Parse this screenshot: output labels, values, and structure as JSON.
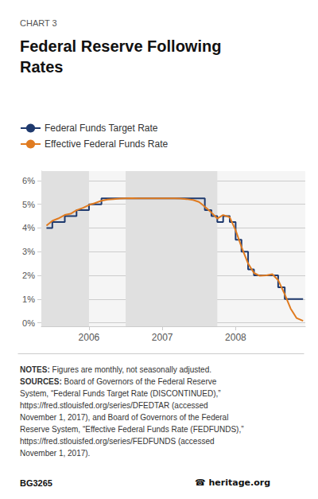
{
  "chart_data": {
    "type": "line",
    "title_label": "CHART 3",
    "title": "Federal Reserve Following\nRates",
    "x": [
      2005.42,
      2005.5,
      2005.58,
      2005.67,
      2005.75,
      2005.83,
      2005.92,
      2006.0,
      2006.08,
      2006.17,
      2006.25,
      2006.33,
      2006.42,
      2006.5,
      2006.58,
      2006.67,
      2006.75,
      2006.83,
      2006.92,
      2007.0,
      2007.08,
      2007.17,
      2007.25,
      2007.33,
      2007.42,
      2007.5,
      2007.58,
      2007.67,
      2007.75,
      2007.83,
      2007.92,
      2008.0,
      2008.08,
      2008.17,
      2008.25,
      2008.33,
      2008.42,
      2008.5,
      2008.58,
      2008.67,
      2008.75,
      2008.83,
      2008.92
    ],
    "series": [
      {
        "name": "Federal Funds Target Rate",
        "color": "#1f3a6e",
        "type": "step",
        "values": [
          4.0,
          4.25,
          4.25,
          4.5,
          4.5,
          4.75,
          4.75,
          5.0,
          5.0,
          5.25,
          5.25,
          5.25,
          5.25,
          5.25,
          5.25,
          5.25,
          5.25,
          5.25,
          5.25,
          5.25,
          5.25,
          5.25,
          5.25,
          5.25,
          5.25,
          5.25,
          4.75,
          4.5,
          4.25,
          4.5,
          4.25,
          3.5,
          3.0,
          2.25,
          2.0,
          2.0,
          2.0,
          2.0,
          1.5,
          1.0,
          1.0,
          1.0,
          1.0
        ]
      },
      {
        "name": "Effective Federal Funds Rate",
        "color": "#e07b20",
        "type": "line",
        "values": [
          4.1,
          4.3,
          4.4,
          4.55,
          4.6,
          4.75,
          4.85,
          4.97,
          5.05,
          5.15,
          5.2,
          5.22,
          5.24,
          5.25,
          5.26,
          5.25,
          5.25,
          5.25,
          5.25,
          5.25,
          5.25,
          5.25,
          5.24,
          5.22,
          5.18,
          5.1,
          4.9,
          4.65,
          4.4,
          4.55,
          4.45,
          3.9,
          3.2,
          2.5,
          2.1,
          1.98,
          2.0,
          2.05,
          1.8,
          1.2,
          0.6,
          0.2,
          0.08
        ]
      }
    ],
    "shaded_regions": [
      [
        2005.35,
        2006.0
      ],
      [
        2006.5,
        2007.75
      ]
    ],
    "xlim": [
      2005.35,
      2008.95
    ],
    "xticks": [
      2006,
      2007,
      2008
    ],
    "ylim": [
      -0.15,
      6.4
    ],
    "yticks": [
      {
        "value": 0,
        "label": "0%"
      },
      {
        "value": 1,
        "label": "1%"
      },
      {
        "value": 2,
        "label": "2%"
      },
      {
        "value": 3,
        "label": "3%"
      },
      {
        "value": 4,
        "label": "4%"
      },
      {
        "value": 5,
        "label": "5%"
      },
      {
        "value": 6,
        "label": "6%"
      }
    ],
    "grid": true,
    "legend": "top-left",
    "notes": [
      {
        "label": "NOTES:",
        "text": " Figures are monthly, not seasonally adjusted."
      },
      {
        "label": "SOURCES:",
        "text": " Board of Governors of the Federal Reserve\nSystem, “Federal Funds Target Rate (DISCONTINUED),”\nhttps://fred.stlouisfed.org/series/DFEDTAR (accessed\nNovember 1, 2017), and Board of Governors of the Federal\nReserve System, “Effective Federal Funds Rate (FEDFUNDS),”\nhttps://fred.stlouisfed.org/series/FEDFUNDS (accessed\nNovember 1, 2017)."
      }
    ],
    "footer": [
      "BG3265",
      "☎ heritage.org"
    ]
  }
}
